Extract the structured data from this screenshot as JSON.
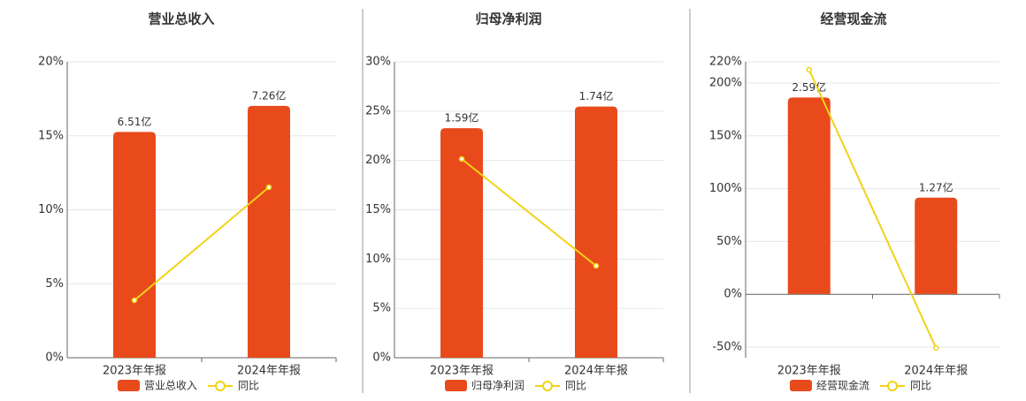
{
  "chart_data": [
    {
      "type": "bar",
      "title": "营业总收入",
      "categories": [
        "2023年年报",
        "2024年年报"
      ],
      "series": [
        {
          "name": "营业总收入",
          "type": "bar",
          "color": "#e84a1b",
          "axis": "y2",
          "values": [
            6.51,
            7.26
          ],
          "value_labels": [
            "6.51亿",
            "7.26亿"
          ]
        },
        {
          "name": "同比",
          "type": "line",
          "color": "#f2d216",
          "values": [
            3.88,
            11.52
          ]
        }
      ],
      "ylim": [
        0,
        20
      ],
      "yticks": [
        {
          "value": 0,
          "label": "0%"
        },
        {
          "value": 5,
          "label": "5%"
        },
        {
          "value": 10,
          "label": "10%"
        },
        {
          "value": 15,
          "label": "15%"
        },
        {
          "value": 20,
          "label": "20%"
        }
      ],
      "y2lim": [
        0,
        8.53
      ],
      "grid": true
    },
    {
      "type": "bar",
      "title": "归母净利润",
      "categories": [
        "2023年年报",
        "2024年年报"
      ],
      "series": [
        {
          "name": "归母净利润",
          "type": "bar",
          "color": "#e84a1b",
          "axis": "y2",
          "values": [
            1.59,
            1.74
          ],
          "value_labels": [
            "1.59亿",
            "1.74亿"
          ]
        },
        {
          "name": "同比",
          "type": "line",
          "color": "#f2d216",
          "values": [
            20.15,
            9.31
          ]
        }
      ],
      "ylim": [
        0,
        30
      ],
      "yticks": [
        {
          "value": 0,
          "label": "0%"
        },
        {
          "value": 5,
          "label": "5%"
        },
        {
          "value": 10,
          "label": "10%"
        },
        {
          "value": 15,
          "label": "15%"
        },
        {
          "value": 20,
          "label": "20%"
        },
        {
          "value": 25,
          "label": "25%"
        },
        {
          "value": 30,
          "label": "30%"
        }
      ],
      "y2lim": [
        0,
        2.05
      ],
      "grid": true
    },
    {
      "type": "bar",
      "title": "经营现金流",
      "categories": [
        "2023年年报",
        "2024年年报"
      ],
      "series": [
        {
          "name": "经营现金流",
          "type": "bar",
          "color": "#e84a1b",
          "axis": "y2",
          "values": [
            2.59,
            1.27
          ],
          "value_labels": [
            "2.59亿",
            "1.27亿"
          ]
        },
        {
          "name": "同比",
          "type": "line",
          "color": "#f2d216",
          "values": [
            212.5,
            -50.8
          ]
        }
      ],
      "ylim": [
        -60,
        220
      ],
      "yticks": [
        {
          "value": -50,
          "label": "-50%"
        },
        {
          "value": 0,
          "label": "0%"
        },
        {
          "value": 50,
          "label": "50%"
        },
        {
          "value": 100,
          "label": "100%"
        },
        {
          "value": 150,
          "label": "150%"
        },
        {
          "value": 200,
          "label": "200%"
        },
        {
          "value": 220,
          "label": "220%"
        }
      ],
      "y2lim": [
        -0.84,
        3.06
      ],
      "grid": true
    }
  ]
}
